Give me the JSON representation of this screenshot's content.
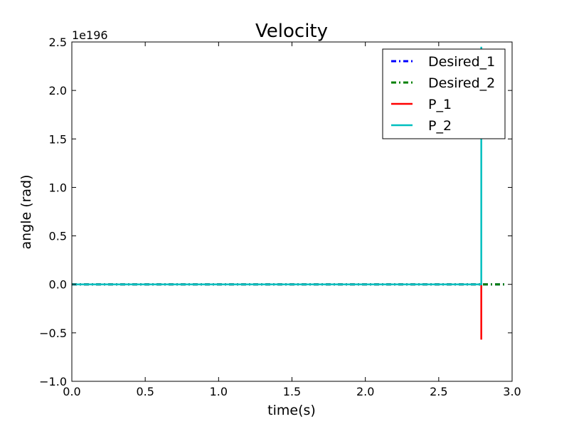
{
  "chart_data": {
    "type": "line",
    "title": "Velocity",
    "xlabel": "time(s)",
    "ylabel": "angle (rad)",
    "y_offset_label": "1e196",
    "xlim": [
      0.0,
      3.0
    ],
    "ylim": [
      -1.0,
      2.5
    ],
    "x_ticks": [
      "0.0",
      "0.5",
      "1.0",
      "1.5",
      "2.0",
      "2.5",
      "3.0"
    ],
    "y_ticks": [
      "−1.0",
      "−0.5",
      "0.0",
      "0.5",
      "1.0",
      "1.5",
      "2.0",
      "2.5"
    ],
    "x_tick_values": [
      0.0,
      0.5,
      1.0,
      1.5,
      2.0,
      2.5,
      3.0
    ],
    "y_tick_values": [
      -1.0,
      -0.5,
      0.0,
      0.5,
      1.0,
      1.5,
      2.0,
      2.5
    ],
    "legend_position": "top-right",
    "series": [
      {
        "name": "Desired_1",
        "color": "#0000ff",
        "style": "dashdot",
        "x": [
          0.0,
          2.95
        ],
        "y": [
          0.0,
          0.0
        ]
      },
      {
        "name": "Desired_2",
        "color": "#008000",
        "style": "dashdot",
        "x": [
          0.0,
          2.95
        ],
        "y": [
          0.0,
          0.0
        ]
      },
      {
        "name": "P_1",
        "color": "#ff0000",
        "style": "solid",
        "x": [
          0.0,
          2.78,
          2.79,
          2.79
        ],
        "y": [
          0.0,
          0.0,
          0.0,
          -0.57
        ]
      },
      {
        "name": "P_2",
        "color": "#00bfbf",
        "style": "solid",
        "x": [
          0.0,
          2.78,
          2.79,
          2.79
        ],
        "y": [
          0.0,
          0.0,
          0.0,
          2.45
        ]
      }
    ]
  }
}
